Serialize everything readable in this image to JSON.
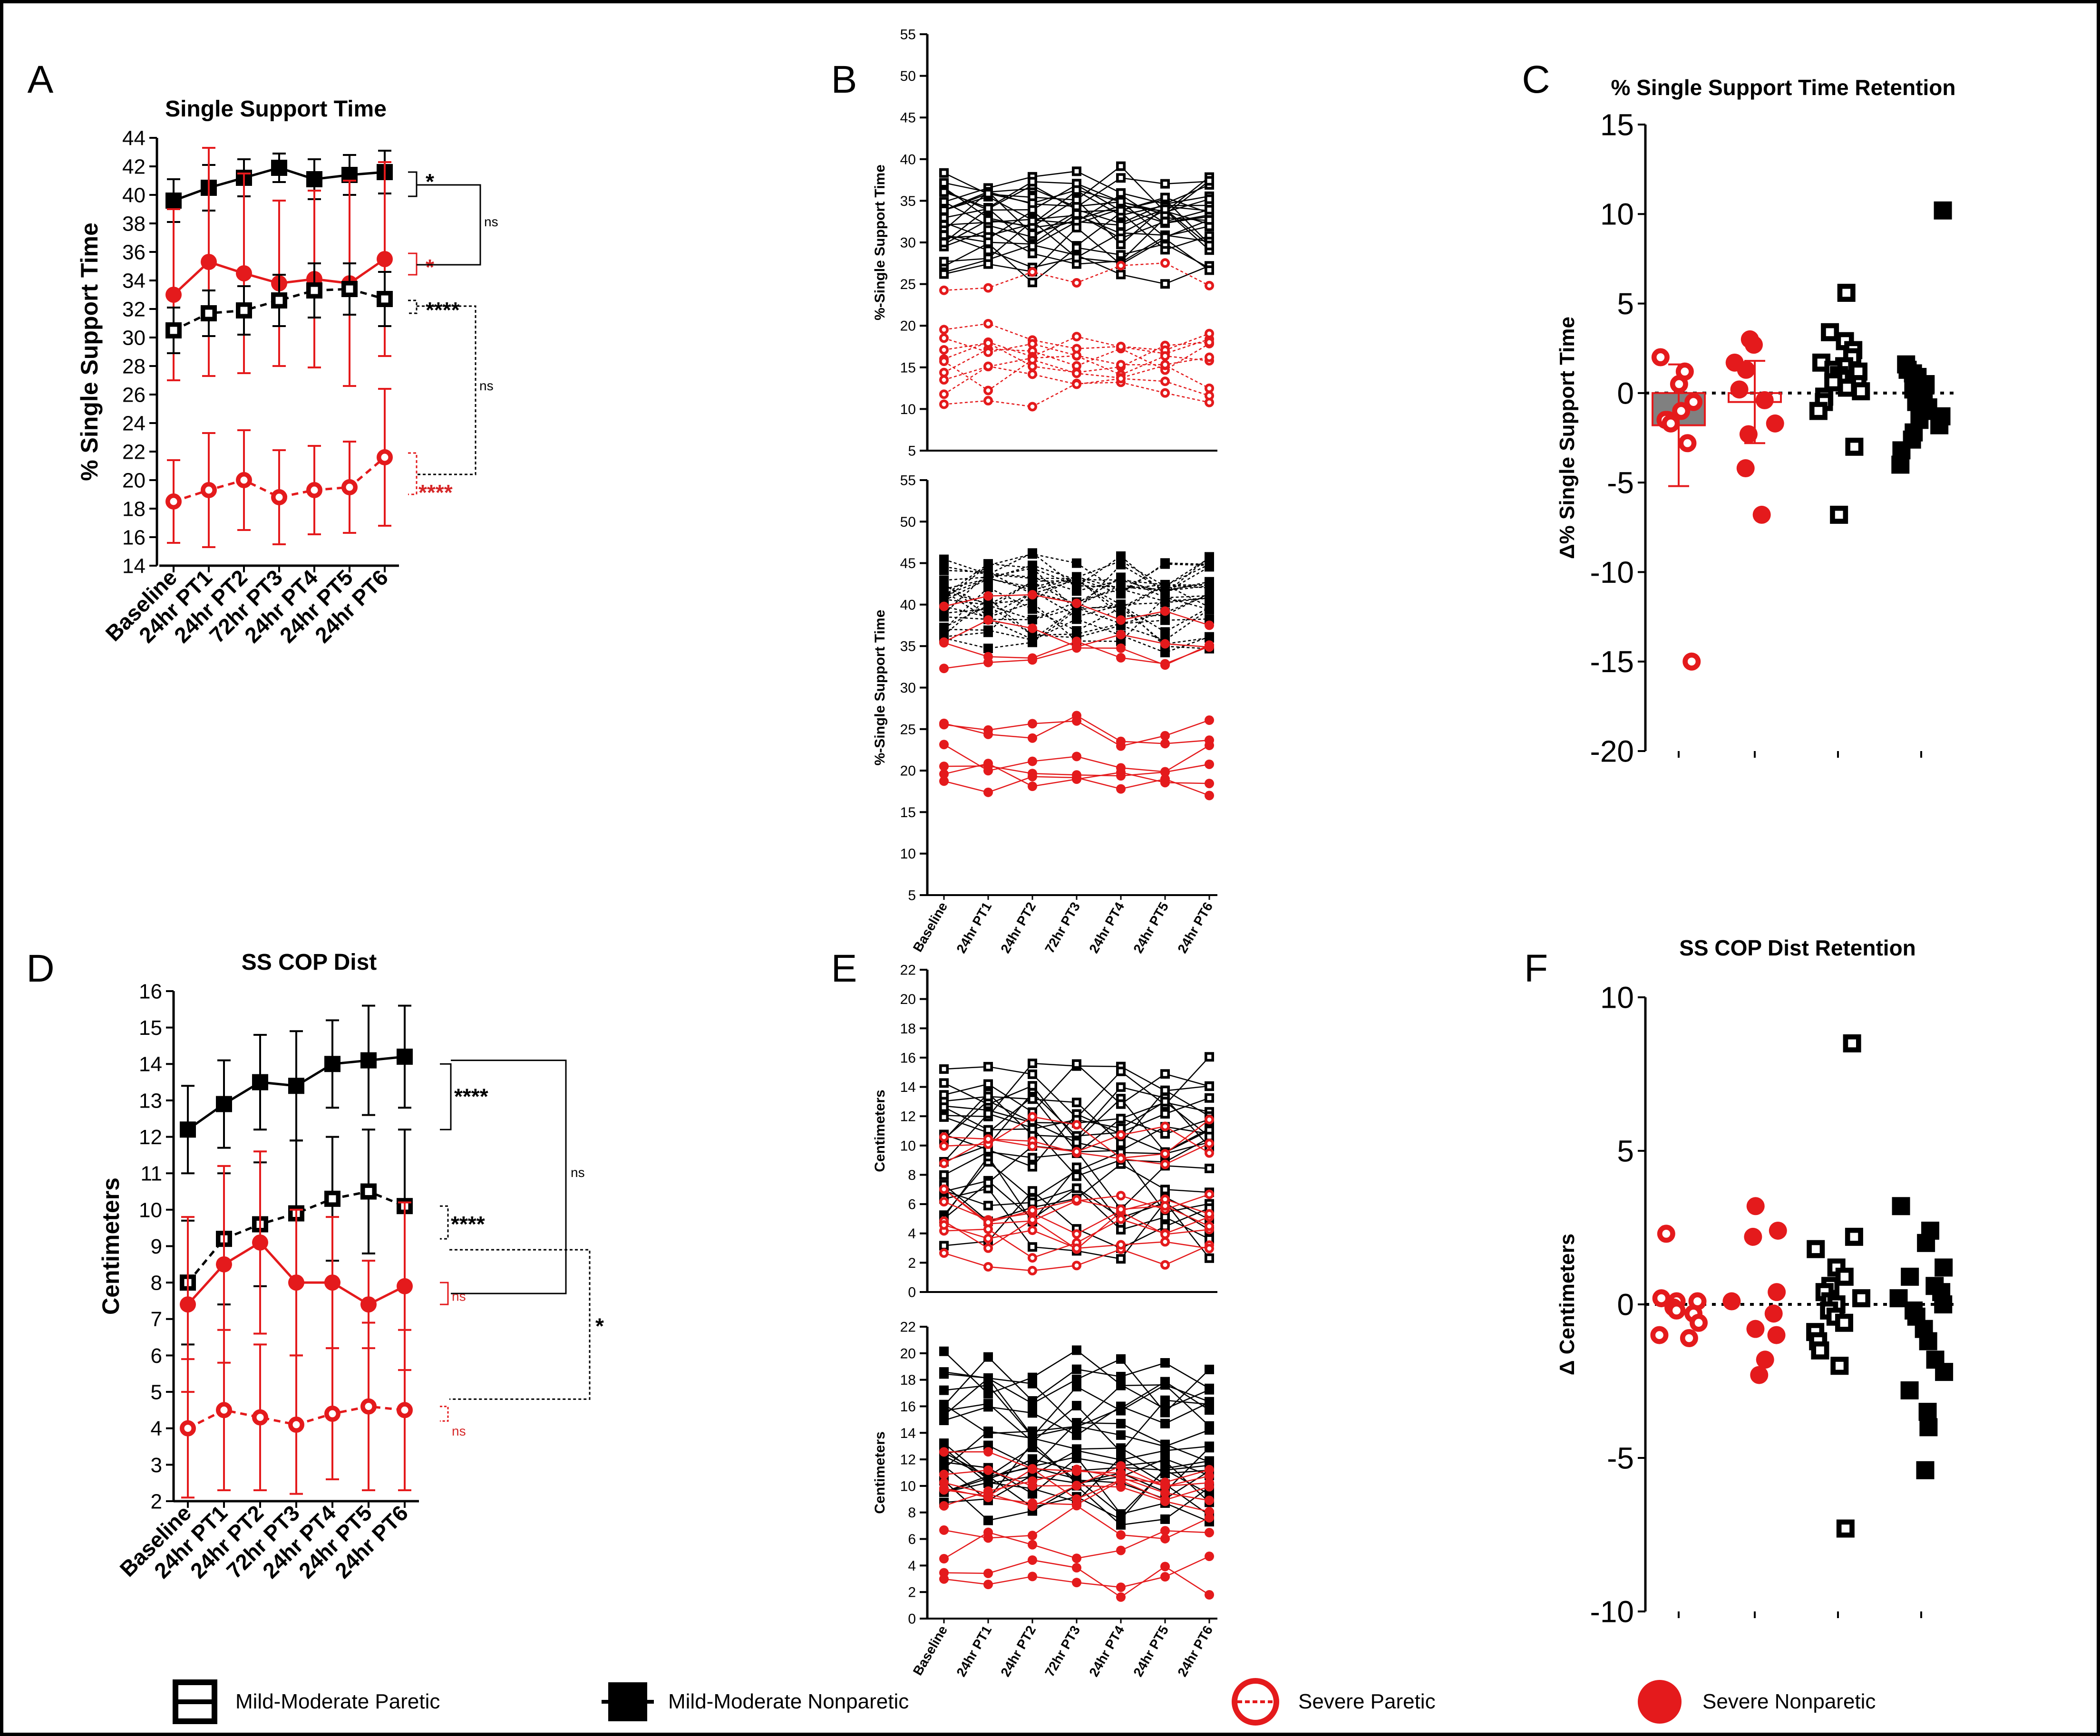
{
  "colors": {
    "black": "#000000",
    "red": "#e41a1c",
    "text_red": "#d62728",
    "gray": "#808080"
  },
  "xcats": [
    "Baseline",
    "24hr PT1",
    "24hr PT2",
    "72hr PT3",
    "24hr PT4",
    "24hr PT5",
    "24hr PT6"
  ],
  "legend": [
    {
      "label": "Mild-Moderate Paretic",
      "marker": "open-square",
      "color": "#000000"
    },
    {
      "label": "Mild-Moderate Nonparetic",
      "marker": "filled-square",
      "color": "#000000"
    },
    {
      "label": "Severe Paretic",
      "marker": "open-circle",
      "color": "#e41a1c"
    },
    {
      "label": "Severe Nonparetic",
      "marker": "filled-circle",
      "color": "#e41a1c"
    }
  ],
  "chart_data": [
    {
      "panel": "A",
      "type": "line",
      "title": "Single Support Time",
      "ylabel": "% Single Support Time",
      "ylim": [
        14,
        44
      ],
      "yticks": [
        14,
        16,
        18,
        20,
        22,
        24,
        26,
        28,
        30,
        32,
        34,
        36,
        38,
        40,
        42,
        44
      ],
      "series": [
        {
          "name": "Mild-Moderate Nonparetic",
          "marker": "filled-square",
          "color": "#000000",
          "dashed": false,
          "values": [
            39.6,
            40.5,
            41.2,
            41.9,
            41.1,
            41.4,
            41.6
          ],
          "err": [
            1.5,
            1.6,
            1.3,
            1.0,
            1.4,
            1.4,
            1.5
          ]
        },
        {
          "name": "Severe Nonparetic",
          "marker": "filled-circle",
          "color": "#e41a1c",
          "dashed": false,
          "values": [
            33.0,
            35.3,
            34.5,
            33.8,
            34.1,
            33.8,
            35.5
          ],
          "err": [
            6.0,
            8.0,
            7.0,
            5.8,
            6.2,
            7.2,
            6.8
          ]
        },
        {
          "name": "Mild-Moderate Paretic",
          "marker": "open-square",
          "color": "#000000",
          "dashed": true,
          "values": [
            30.5,
            31.7,
            31.9,
            32.6,
            33.3,
            33.4,
            32.7
          ],
          "err": [
            1.6,
            1.6,
            1.7,
            1.8,
            1.9,
            1.8,
            1.9
          ]
        },
        {
          "name": "Severe Paretic",
          "marker": "open-circle",
          "color": "#e41a1c",
          "dashed": true,
          "values": [
            18.5,
            19.3,
            20.0,
            18.8,
            19.3,
            19.5,
            21.6
          ],
          "err": [
            2.9,
            4.0,
            3.5,
            3.3,
            3.1,
            3.2,
            4.8
          ]
        }
      ],
      "annotations": {
        "sig1": "*",
        "sig2": "*",
        "sig3": "****",
        "sig4": "****",
        "ns1": "ns",
        "ns2": "ns"
      }
    },
    {
      "panel": "B",
      "type": "line",
      "ylabel": "%-Single Support Time",
      "ylim": [
        5,
        55
      ],
      "yticks": [
        5,
        10,
        15,
        20,
        25,
        30,
        35,
        40,
        45,
        50,
        55
      ],
      "subpanels": [
        "top: Mild-Moderate Paretic (open squares) and Severe Paretic (open circles) individual trajectories",
        "bottom: Mild-Moderate Nonparetic (filled squares) and Severe Nonparetic (filled circles) individual trajectories"
      ]
    },
    {
      "panel": "C",
      "type": "scatter",
      "title": "% Single Support Time Retention",
      "ylabel": "Δ% Single Support Time",
      "ylim": [
        -20,
        15
      ],
      "yticks": [
        -20,
        -15,
        -10,
        -5,
        0,
        5,
        10,
        15
      ],
      "groups": [
        {
          "name": "Severe Paretic",
          "marker": "open-circle",
          "color": "#e41a1c",
          "mean": -1.8,
          "err": 3.4,
          "values": [
            2.0,
            1.2,
            0.5,
            -0.5,
            -1.0,
            -1.5,
            -1.5,
            -1.7,
            -2.8,
            -15.0
          ]
        },
        {
          "name": "Severe Nonparetic",
          "marker": "filled-circle",
          "color": "#e41a1c",
          "mean": -0.5,
          "err": 2.3,
          "values": [
            3.0,
            2.7,
            1.7,
            1.3,
            0.2,
            -0.4,
            -1.7,
            -2.3,
            -4.2,
            -6.8
          ]
        },
        {
          "name": "Mild-Moderate Paretic",
          "marker": "open-square",
          "color": "#000000",
          "mean": 0.8,
          "err": 0,
          "values": [
            5.6,
            3.4,
            2.9,
            2.4,
            2.0,
            1.7,
            1.5,
            1.3,
            1.2,
            1.0,
            0.8,
            0.6,
            0.5,
            0.3,
            0.1,
            -0.2,
            -0.5,
            -1.0,
            -3.0,
            -6.8
          ]
        },
        {
          "name": "Mild-Moderate Nonparetic",
          "marker": "filled-square",
          "color": "#000000",
          "mean": 0.1,
          "err": 0,
          "values": [
            10.2,
            1.6,
            1.3,
            1.1,
            0.9,
            0.5,
            0.2,
            0.0,
            -0.3,
            -0.5,
            -0.8,
            -1.0,
            -1.3,
            -1.5,
            -1.8,
            -2.2,
            -2.6,
            -3.2,
            -4.0
          ]
        }
      ]
    },
    {
      "panel": "D",
      "type": "line",
      "title": "SS COP Dist",
      "ylabel": "Centimeters",
      "ylim": [
        2,
        16
      ],
      "yticks": [
        2,
        3,
        4,
        5,
        6,
        7,
        8,
        9,
        10,
        11,
        12,
        13,
        14,
        15,
        16
      ],
      "series": [
        {
          "name": "Mild-Moderate Nonparetic",
          "marker": "filled-square",
          "color": "#000000",
          "dashed": false,
          "values": [
            12.2,
            12.9,
            13.5,
            13.4,
            14.0,
            14.1,
            14.2
          ],
          "err": [
            1.2,
            1.2,
            1.3,
            1.5,
            1.2,
            1.5,
            1.4
          ]
        },
        {
          "name": "Mild-Moderate Paretic",
          "marker": "open-square",
          "color": "#000000",
          "dashed": true,
          "values": [
            8.0,
            9.2,
            9.6,
            9.9,
            10.3,
            10.5,
            10.1
          ],
          "err": [
            1.7,
            1.8,
            1.7,
            2.0,
            1.7,
            1.7,
            2.1
          ]
        },
        {
          "name": "Severe Nonparetic",
          "marker": "filled-circle",
          "color": "#e41a1c",
          "dashed": false,
          "values": [
            7.4,
            8.5,
            9.1,
            8.0,
            8.0,
            7.4,
            7.9
          ],
          "err": [
            2.4,
            2.7,
            2.5,
            2.0,
            1.8,
            1.2,
            2.3
          ]
        },
        {
          "name": "Severe Paretic",
          "marker": "open-circle",
          "color": "#e41a1c",
          "dashed": true,
          "values": [
            4.0,
            4.5,
            4.3,
            4.1,
            4.4,
            4.6,
            4.5
          ],
          "err": [
            1.9,
            2.2,
            2.0,
            1.9,
            1.8,
            2.3,
            2.2
          ]
        }
      ],
      "annotations": {
        "sig1": "****",
        "sig2": "****",
        "sig3": "*",
        "ns1": "ns",
        "ns2": "ns",
        "ns3": "ns"
      }
    },
    {
      "panel": "E",
      "type": "line",
      "ylabel": "Centimeters",
      "ylim": [
        0,
        22
      ],
      "yticks": [
        0,
        2,
        4,
        6,
        8,
        10,
        12,
        14,
        16,
        18,
        20,
        22
      ],
      "subpanels": [
        "top: Mild-Moderate Paretic (open squares) and Severe Paretic (open circles) individual trajectories",
        "bottom: Mild-Moderate Nonparetic (filled squares) and Severe Nonparetic (filled circles) individual trajectories"
      ]
    },
    {
      "panel": "F",
      "type": "scatter",
      "title": "SS COP Dist Retention",
      "ylabel": "Δ Centimeters",
      "ylim": [
        -10,
        10
      ],
      "yticks": [
        -10,
        -5,
        0,
        5,
        10
      ],
      "groups": [
        {
          "name": "Severe Paretic",
          "marker": "open-circle",
          "color": "#e41a1c",
          "values": [
            2.3,
            0.2,
            0.1,
            0.1,
            -0.1,
            -0.2,
            -0.3,
            -0.6,
            -1.0,
            -1.1
          ]
        },
        {
          "name": "Severe Nonparetic",
          "marker": "filled-circle",
          "color": "#e41a1c",
          "values": [
            3.2,
            2.4,
            2.2,
            0.4,
            0.1,
            -0.3,
            -0.8,
            -1.0,
            -1.8,
            -2.3
          ]
        },
        {
          "name": "Mild-Moderate Paretic",
          "marker": "open-square",
          "color": "#000000",
          "values": [
            8.5,
            2.2,
            1.8,
            1.2,
            0.9,
            0.6,
            0.4,
            0.2,
            0.1,
            0.0,
            -0.2,
            -0.4,
            -0.6,
            -0.9,
            -1.2,
            -1.5,
            -2.0,
            -7.3
          ]
        },
        {
          "name": "Mild-Moderate Nonparetic",
          "marker": "filled-square",
          "color": "#000000",
          "values": [
            3.2,
            2.4,
            2.0,
            1.2,
            0.9,
            0.6,
            0.4,
            0.2,
            0.0,
            -0.2,
            -0.4,
            -0.8,
            -1.2,
            -1.8,
            -2.2,
            -2.8,
            -3.5,
            -4.0,
            -5.4
          ]
        }
      ]
    }
  ]
}
